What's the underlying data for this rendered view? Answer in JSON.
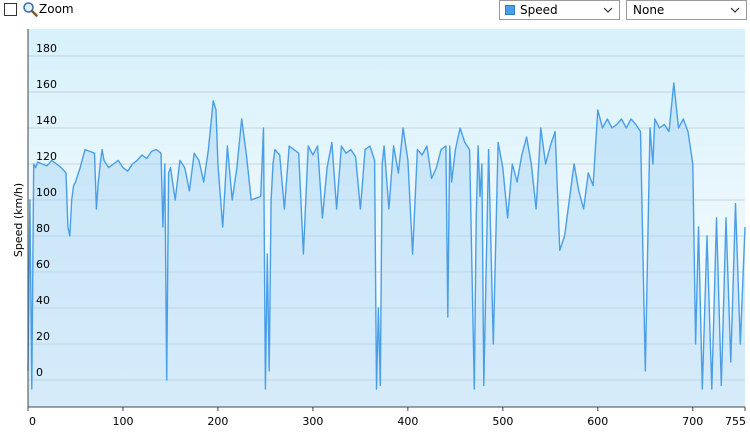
{
  "toolbar": {
    "zoom_label": "Zoom",
    "series_select": {
      "value": "Speed",
      "swatch_color": "#4a9ee8"
    },
    "compare_select": {
      "value": "None"
    }
  },
  "chart_data": {
    "type": "area",
    "ylabel": "Speed (km/h)",
    "xlim": [
      0,
      755
    ],
    "ylim": [
      -15,
      195
    ],
    "x_ticks": [
      0,
      100,
      200,
      300,
      400,
      500,
      600,
      700,
      755
    ],
    "y_ticks": [
      0,
      20,
      40,
      60,
      80,
      100,
      120,
      140,
      160,
      180
    ],
    "grid": true,
    "line_color": "#4a9ee8",
    "x": [
      0,
      2,
      4,
      6,
      8,
      10,
      15,
      20,
      25,
      30,
      35,
      40,
      42,
      44,
      46,
      48,
      50,
      55,
      60,
      65,
      70,
      72,
      74,
      76,
      78,
      80,
      85,
      90,
      95,
      100,
      105,
      110,
      115,
      120,
      125,
      130,
      135,
      140,
      142,
      144,
      146,
      148,
      150,
      155,
      160,
      165,
      170,
      175,
      180,
      185,
      190,
      195,
      198,
      200,
      205,
      210,
      215,
      220,
      225,
      230,
      235,
      240,
      245,
      248,
      250,
      252,
      254,
      256,
      258,
      260,
      265,
      270,
      275,
      280,
      285,
      290,
      295,
      300,
      305,
      310,
      315,
      320,
      325,
      330,
      335,
      340,
      345,
      350,
      355,
      360,
      365,
      367,
      369,
      371,
      373,
      375,
      380,
      385,
      390,
      395,
      400,
      405,
      410,
      415,
      420,
      425,
      430,
      435,
      440,
      442,
      444,
      446,
      450,
      455,
      460,
      465,
      470,
      472,
      474,
      476,
      478,
      480,
      485,
      490,
      495,
      500,
      505,
      510,
      515,
      520,
      525,
      530,
      535,
      540,
      545,
      550,
      555,
      560,
      565,
      570,
      575,
      580,
      585,
      590,
      595,
      600,
      605,
      610,
      615,
      620,
      625,
      630,
      635,
      640,
      645,
      650,
      655,
      658,
      660,
      665,
      670,
      675,
      680,
      685,
      690,
      695,
      700,
      703,
      706,
      710,
      715,
      720,
      725,
      730,
      735,
      740,
      745,
      750,
      755
    ],
    "values": [
      5,
      100,
      -5,
      120,
      118,
      121,
      120,
      119,
      122,
      120,
      118,
      115,
      85,
      80,
      100,
      108,
      110,
      118,
      128,
      127,
      126,
      95,
      110,
      120,
      128,
      122,
      118,
      120,
      122,
      118,
      116,
      120,
      122,
      125,
      123,
      127,
      128,
      126,
      85,
      120,
      0,
      115,
      118,
      100,
      122,
      118,
      105,
      126,
      122,
      110,
      128,
      155,
      150,
      120,
      85,
      130,
      100,
      118,
      145,
      125,
      100,
      101,
      102,
      140,
      -5,
      70,
      5,
      100,
      120,
      128,
      125,
      95,
      130,
      128,
      126,
      70,
      130,
      125,
      130,
      90,
      118,
      132,
      95,
      130,
      126,
      128,
      124,
      95,
      128,
      130,
      122,
      -5,
      40,
      -3,
      120,
      130,
      95,
      130,
      115,
      140,
      122,
      70,
      128,
      125,
      130,
      112,
      118,
      128,
      130,
      35,
      130,
      110,
      128,
      140,
      132,
      128,
      -5,
      90,
      130,
      102,
      120,
      -3,
      128,
      20,
      132,
      118,
      90,
      120,
      110,
      125,
      135,
      120,
      95,
      140,
      120,
      130,
      138,
      72,
      80,
      100,
      120,
      105,
      95,
      115,
      108,
      150,
      140,
      145,
      140,
      142,
      145,
      140,
      145,
      142,
      138,
      5,
      140,
      120,
      145,
      140,
      142,
      138,
      165,
      140,
      145,
      138,
      120,
      20,
      85,
      -5,
      80,
      -5,
      90,
      -3,
      90,
      10,
      98,
      20,
      85
    ]
  }
}
